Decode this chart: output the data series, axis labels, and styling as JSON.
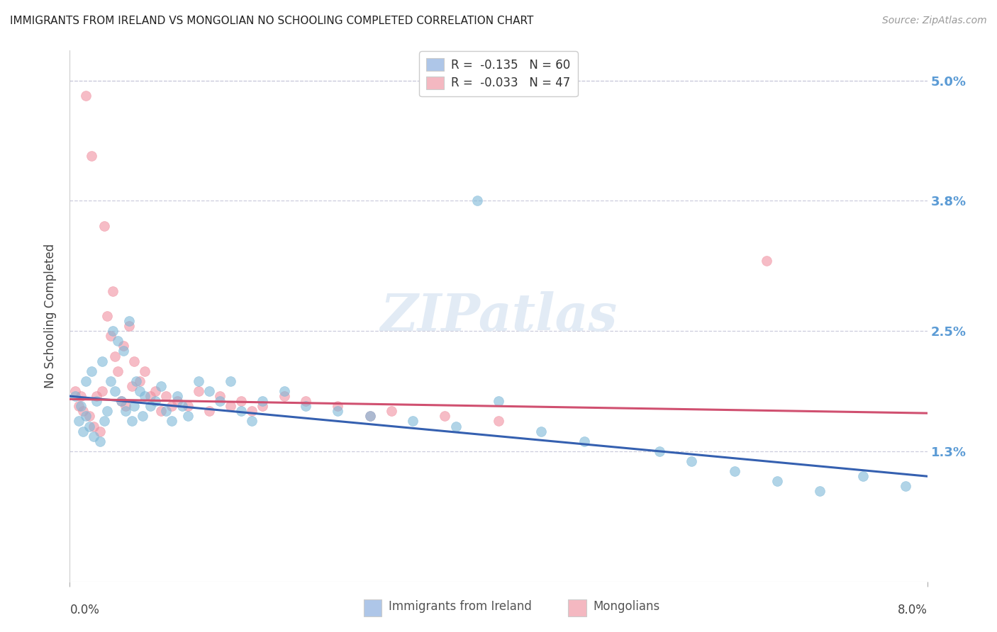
{
  "title": "IMMIGRANTS FROM IRELAND VS MONGOLIAN NO SCHOOLING COMPLETED CORRELATION CHART",
  "source": "Source: ZipAtlas.com",
  "ylabel": "No Schooling Completed",
  "ytick_values": [
    1.3,
    2.5,
    3.8,
    5.0
  ],
  "xmin": 0.0,
  "xmax": 8.0,
  "ymin": 0.0,
  "ymax": 5.3,
  "legend1_label": "R =  -0.135   N = 60",
  "legend2_label": "R =  -0.033   N = 47",
  "legend1_color": "#aec6e8",
  "legend2_color": "#f4b8c1",
  "series1_color": "#7db8d8",
  "series2_color": "#f090a0",
  "line1_color": "#3560b0",
  "line2_color": "#d05070",
  "watermark": "ZIPatlas",
  "bottom_legend1": "Immigrants from Ireland",
  "bottom_legend2": "Mongolians",
  "ireland_x": [
    0.05,
    0.08,
    0.1,
    0.12,
    0.15,
    0.15,
    0.18,
    0.2,
    0.22,
    0.25,
    0.28,
    0.3,
    0.32,
    0.35,
    0.38,
    0.4,
    0.42,
    0.45,
    0.48,
    0.5,
    0.52,
    0.55,
    0.58,
    0.6,
    0.62,
    0.65,
    0.68,
    0.7,
    0.75,
    0.8,
    0.85,
    0.9,
    0.95,
    1.0,
    1.05,
    1.1,
    1.2,
    1.3,
    1.4,
    1.5,
    1.6,
    1.7,
    1.8,
    2.0,
    2.2,
    2.5,
    2.8,
    3.2,
    3.6,
    4.0,
    4.4,
    4.8,
    3.8,
    5.5,
    5.8,
    6.2,
    6.6,
    7.0,
    7.4,
    7.8
  ],
  "ireland_y": [
    1.85,
    1.6,
    1.75,
    1.5,
    2.0,
    1.65,
    1.55,
    2.1,
    1.45,
    1.8,
    1.4,
    2.2,
    1.6,
    1.7,
    2.0,
    2.5,
    1.9,
    2.4,
    1.8,
    2.3,
    1.7,
    2.6,
    1.6,
    1.75,
    2.0,
    1.9,
    1.65,
    1.85,
    1.75,
    1.8,
    1.95,
    1.7,
    1.6,
    1.85,
    1.75,
    1.65,
    2.0,
    1.9,
    1.8,
    2.0,
    1.7,
    1.6,
    1.8,
    1.9,
    1.75,
    1.7,
    1.65,
    1.6,
    1.55,
    1.8,
    1.5,
    1.4,
    3.8,
    1.3,
    1.2,
    1.1,
    1.0,
    0.9,
    1.05,
    0.95
  ],
  "mongolian_x": [
    0.05,
    0.08,
    0.1,
    0.12,
    0.15,
    0.18,
    0.2,
    0.22,
    0.25,
    0.28,
    0.3,
    0.32,
    0.35,
    0.38,
    0.4,
    0.42,
    0.45,
    0.48,
    0.5,
    0.52,
    0.55,
    0.58,
    0.6,
    0.65,
    0.7,
    0.75,
    0.8,
    0.85,
    0.9,
    0.95,
    1.0,
    1.1,
    1.2,
    1.3,
    1.4,
    1.5,
    1.6,
    1.7,
    1.8,
    2.0,
    2.2,
    2.5,
    3.0,
    3.5,
    4.0,
    6.5,
    2.8
  ],
  "mongolian_y": [
    1.9,
    1.75,
    1.85,
    1.7,
    4.85,
    1.65,
    4.25,
    1.55,
    1.85,
    1.5,
    1.9,
    3.55,
    2.65,
    2.45,
    2.9,
    2.25,
    2.1,
    1.8,
    2.35,
    1.75,
    2.55,
    1.95,
    2.2,
    2.0,
    2.1,
    1.85,
    1.9,
    1.7,
    1.85,
    1.75,
    1.8,
    1.75,
    1.9,
    1.7,
    1.85,
    1.75,
    1.8,
    1.7,
    1.75,
    1.85,
    1.8,
    1.75,
    1.7,
    1.65,
    1.6,
    3.2,
    1.65
  ],
  "background_color": "#ffffff",
  "grid_color": "#ccccdd",
  "title_fontsize": 11,
  "axis_label_color": "#5b9bd5"
}
